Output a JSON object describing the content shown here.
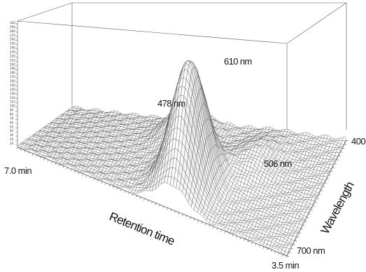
{
  "chart_data": {
    "type": "surface3d",
    "title": "",
    "xlabel": "Retention time",
    "ylabel": "Wavelength",
    "zlabel": "",
    "x_range_labels": {
      "start": "7.0 min",
      "end": "3.5 min"
    },
    "y_range_labels": {
      "start": "400",
      "end": "700 nm"
    },
    "z_ticks": [
      "300",
      "290",
      "280",
      "270",
      "260",
      "250",
      "240",
      "230",
      "220",
      "210",
      "200",
      "190",
      "180",
      "170",
      "160",
      "150",
      "140",
      "130",
      "120",
      "110",
      "100",
      "90",
      "80",
      "70",
      "60",
      "50",
      "40",
      "30",
      "20",
      "10"
    ],
    "peaks": [
      {
        "label": "610 nm",
        "retention_min": 5.0,
        "wavelength_nm": 610,
        "relative_height": 1.0
      },
      {
        "label": "478 nm",
        "retention_min": 5.4,
        "wavelength_nm": 478,
        "relative_height": 0.28
      },
      {
        "label": "506 nm",
        "retention_min": 4.4,
        "wavelength_nm": 506,
        "relative_height": 0.15
      }
    ],
    "grid": true
  }
}
